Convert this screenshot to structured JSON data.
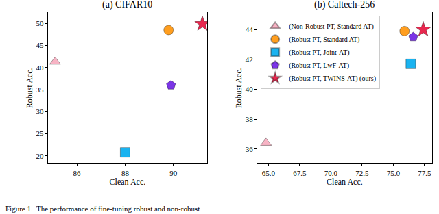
{
  "chart_data": [
    {
      "type": "scatter",
      "title": "(a) CIFAR10",
      "x_label": "Clean Acc.",
      "y_label": "Robust Acc.",
      "xlim": [
        84.8,
        91.4
      ],
      "xticks": [
        86,
        88,
        90
      ],
      "ylim": [
        18.2,
        52.5
      ],
      "yticks": [
        20,
        25,
        30,
        35,
        40,
        45,
        50
      ],
      "grid": false,
      "series": [
        {
          "name": "(Non-Robust PT, Standard AT)",
          "color": "#f7b3c4",
          "marker": "triangle-up",
          "x": [
            85.1
          ],
          "values": [
            41.3
          ]
        },
        {
          "name": "(Robust PT, Standard AT)",
          "color": "#ff9e1f",
          "marker": "circle",
          "x": [
            89.8
          ],
          "values": [
            48.5
          ]
        },
        {
          "name": "(Robust PT, Joint-AT)",
          "color": "#1ab3f0",
          "marker": "square",
          "x": [
            88.0
          ],
          "values": [
            20.8
          ]
        },
        {
          "name": "(Robust PT, LwF-AT)",
          "color": "#7b35e6",
          "marker": "pentagon",
          "x": [
            89.9
          ],
          "values": [
            36.0
          ]
        },
        {
          "name": "(Robust PT, TWINS-AT) (ours)",
          "color": "#e8284f",
          "marker": "star",
          "x": [
            91.2
          ],
          "values": [
            49.9
          ]
        }
      ]
    },
    {
      "type": "scatter",
      "title": "(b) Caltech-256",
      "x_label": "Clean Acc.",
      "y_label": "Robust Acc.",
      "xlim": [
        64.1,
        78.1
      ],
      "xticks": [
        {
          "value": 65,
          "label": "65.0"
        },
        {
          "value": 67.5,
          "label": "67.5"
        },
        {
          "value": 70,
          "label": "70.0"
        },
        {
          "value": 72.5,
          "label": "72.5"
        },
        {
          "value": 75,
          "label": "75.0"
        },
        {
          "value": 77.5,
          "label": "77.5"
        }
      ],
      "ylim": [
        35.0,
        45.15
      ],
      "yticks": [
        36,
        38,
        40,
        42,
        44
      ],
      "grid": false,
      "legend": "upper left",
      "series": [
        {
          "name": "(Non-Robust PT, Standard AT)",
          "color": "#f7b3c4",
          "marker": "triangle-up",
          "x": [
            64.8
          ],
          "values": [
            36.4
          ]
        },
        {
          "name": "(Robust PT, Standard AT)",
          "color": "#ff9e1f",
          "marker": "circle",
          "x": [
            75.9
          ],
          "values": [
            43.9
          ]
        },
        {
          "name": "(Robust PT, Joint-AT)",
          "color": "#1ab3f0",
          "marker": "square",
          "x": [
            76.4
          ],
          "values": [
            41.7
          ]
        },
        {
          "name": "(Robust PT, LwF-AT)",
          "color": "#7b35e6",
          "marker": "pentagon",
          "x": [
            76.6
          ],
          "values": [
            43.5
          ]
        },
        {
          "name": "(Robust PT, TWINS-AT) (ours)",
          "color": "#e8284f",
          "marker": "star",
          "x": [
            77.4
          ],
          "values": [
            44.0
          ]
        }
      ]
    }
  ],
  "caption": "Figure 1.  The performance of fine-tuning robust and non-robust"
}
